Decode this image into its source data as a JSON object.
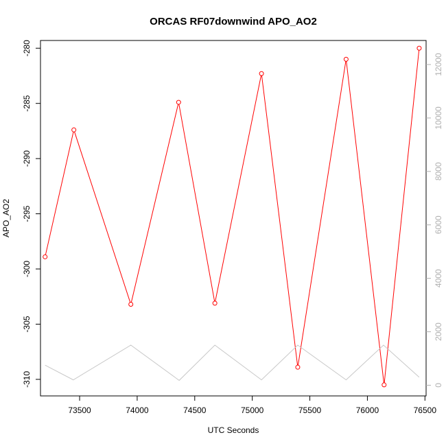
{
  "chart_data": {
    "type": "line",
    "title": "ORCAS RF07downwind APO_AO2",
    "xlabel": "UTC Seconds",
    "ylabel": "APO_AO2",
    "xlim": [
      73160,
      76510
    ],
    "ylim": [
      -311.5,
      -279.3
    ],
    "y2lim": [
      -400,
      12900
    ],
    "x_ticks": [
      73500,
      74000,
      74500,
      75000,
      75500,
      76000,
      76500
    ],
    "y_ticks": [
      -280,
      -285,
      -290,
      -295,
      -300,
      -305,
      -310
    ],
    "y2_ticks": [
      0,
      2000,
      4000,
      6000,
      8000,
      10000,
      12000
    ],
    "grid": false,
    "series": [
      {
        "color": "#ff0000",
        "marker": "open-circle",
        "axis": "left",
        "x": [
          73200,
          73450,
          73945,
          74360,
          74675,
          75080,
          75395,
          75815,
          76145,
          76450
        ],
        "values": [
          -298.9,
          -287.4,
          -303.2,
          -284.9,
          -303.1,
          -282.3,
          -308.9,
          -281.0,
          -310.5,
          -280.0
        ]
      },
      {
        "color": "#c8c8c8",
        "marker": "none",
        "axis": "right",
        "x": [
          73200,
          73445,
          73945,
          74365,
          74675,
          75080,
          75395,
          75815,
          76140,
          76450
        ],
        "values": [
          750,
          200,
          1500,
          180,
          1500,
          200,
          1500,
          200,
          1500,
          300
        ]
      }
    ]
  }
}
